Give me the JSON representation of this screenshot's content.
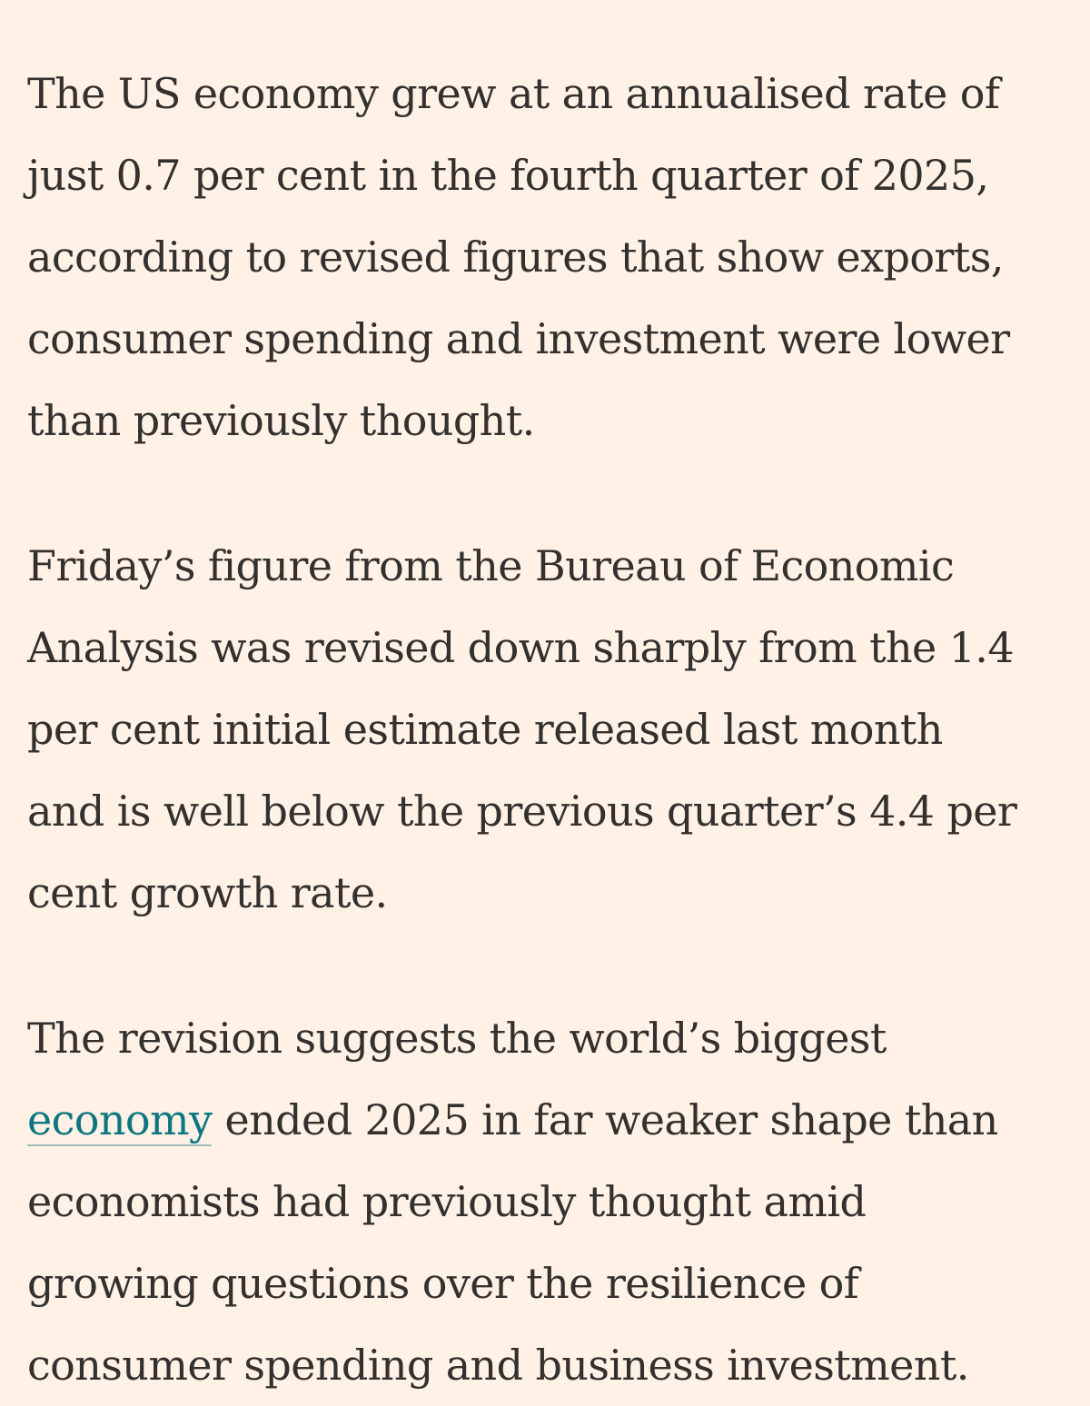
{
  "colors": {
    "background": "#FFF1E5",
    "text": "#33302E",
    "link": "#0D7680"
  },
  "article": {
    "paragraphs": [
      {
        "lines": [
          "The US economy grew at an annualised rate of",
          "just 0.7 per cent in the fourth quarter of 2025,",
          "according to revised figures that show exports,",
          "consumer spending and investment were lower",
          "than previously thought."
        ]
      },
      {
        "lines": [
          "Friday’s figure from the Bureau of Economic",
          "Analysis was revised down sharply from the 1.4",
          "per cent initial estimate released last month",
          "and is well below the previous quarter’s 4.4 per",
          "cent growth rate."
        ]
      },
      {
        "lines": [
          "The revision suggests the world’s biggest",
          "ended 2025 in far weaker shape than",
          "economists had previously thought amid",
          "growing questions over the resilience of",
          "consumer spending and business investment."
        ],
        "link_text": "economy"
      }
    ]
  }
}
